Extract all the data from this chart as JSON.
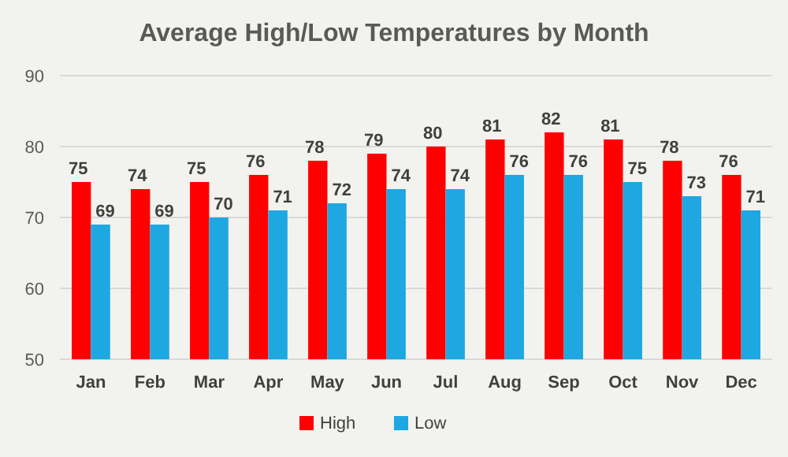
{
  "chart_data": {
    "type": "bar",
    "title": "Average High/Low Temperatures by Month",
    "categories": [
      "Jan",
      "Feb",
      "Mar",
      "Apr",
      "May",
      "Jun",
      "Jul",
      "Aug",
      "Sep",
      "Oct",
      "Nov",
      "Dec"
    ],
    "series": [
      {
        "name": "High",
        "color": "#ff0000",
        "values": [
          75,
          74,
          75,
          76,
          78,
          79,
          80,
          81,
          82,
          81,
          78,
          76
        ]
      },
      {
        "name": "Low",
        "color": "#1ea7e1",
        "values": [
          69,
          69,
          70,
          71,
          72,
          74,
          74,
          76,
          76,
          75,
          73,
          71
        ]
      }
    ],
    "ylim": [
      50,
      90
    ],
    "yticks": [
      50,
      60,
      70,
      80,
      90
    ],
    "grid": "y",
    "legend": "bottom",
    "data_labels": true
  }
}
